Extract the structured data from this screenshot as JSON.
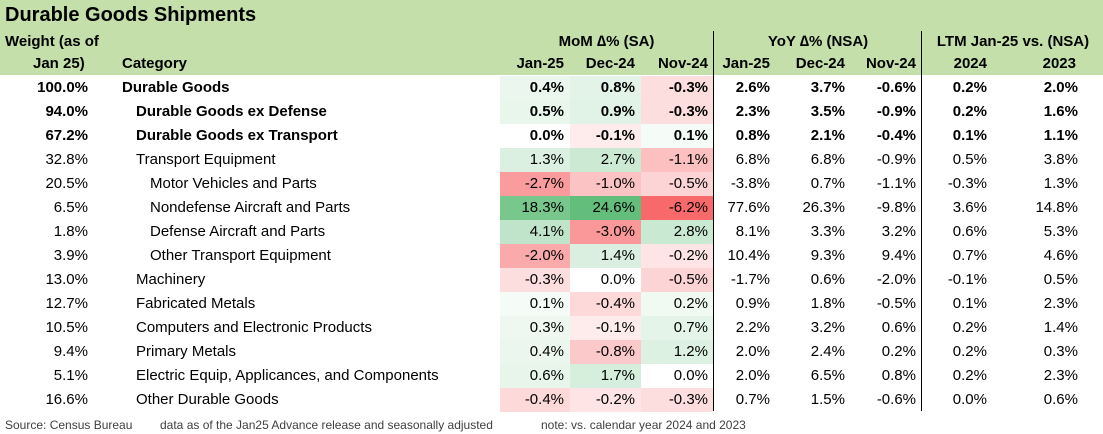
{
  "title": "Durable Goods Shipments",
  "headers": {
    "weight_line1": "Weight (as of",
    "weight_line2": "Jan 25)",
    "category": "Category",
    "mom_group": "MoM ∆% (SA)",
    "yoy_group": "YoY ∆% (NSA)",
    "ltm_group": "LTM Jan-25 vs. (NSA)",
    "mom_cols": [
      "Jan-25",
      "Dec-24",
      "Nov-24"
    ],
    "yoy_cols": [
      "Jan-25",
      "Dec-24",
      "Nov-24"
    ],
    "ltm_cols": [
      "2024",
      "2023"
    ]
  },
  "rows": [
    {
      "weight": "100.0%",
      "category": "Durable Goods",
      "level": 0,
      "bold": true,
      "mom": [
        "0.4%",
        "0.8%",
        "-0.3%"
      ],
      "yoy": [
        "2.6%",
        "3.7%",
        "-0.6%"
      ],
      "ltm": [
        "0.2%",
        "2.0%"
      ]
    },
    {
      "weight": "94.0%",
      "category": "Durable Goods ex Defense",
      "level": 1,
      "bold": true,
      "mom": [
        "0.5%",
        "0.9%",
        "-0.3%"
      ],
      "yoy": [
        "2.3%",
        "3.5%",
        "-0.9%"
      ],
      "ltm": [
        "0.2%",
        "1.6%"
      ]
    },
    {
      "weight": "67.2%",
      "category": "Durable Goods ex Transport",
      "level": 1,
      "bold": true,
      "mom": [
        "0.0%",
        "-0.1%",
        "0.1%"
      ],
      "yoy": [
        "0.8%",
        "2.1%",
        "-0.4%"
      ],
      "ltm": [
        "0.1%",
        "1.1%"
      ]
    },
    {
      "weight": "32.8%",
      "category": "Transport Equipment",
      "level": 1,
      "bold": false,
      "mom": [
        "1.3%",
        "2.7%",
        "-1.1%"
      ],
      "yoy": [
        "6.8%",
        "6.8%",
        "-0.9%"
      ],
      "ltm": [
        "0.5%",
        "3.8%"
      ]
    },
    {
      "weight": "20.5%",
      "category": "Motor Vehicles and Parts",
      "level": 2,
      "bold": false,
      "mom": [
        "-2.7%",
        "-1.0%",
        "-0.5%"
      ],
      "yoy": [
        "-3.8%",
        "0.7%",
        "-1.1%"
      ],
      "ltm": [
        "-0.3%",
        "1.3%"
      ]
    },
    {
      "weight": "6.5%",
      "category": "Nondefense Aircraft and Parts",
      "level": 2,
      "bold": false,
      "mom": [
        "18.3%",
        "24.6%",
        "-6.2%"
      ],
      "yoy": [
        "77.6%",
        "26.3%",
        "-9.8%"
      ],
      "ltm": [
        "3.6%",
        "14.8%"
      ]
    },
    {
      "weight": "1.8%",
      "category": "Defense Aircraft and Parts",
      "level": 2,
      "bold": false,
      "mom": [
        "4.1%",
        "-3.0%",
        "2.8%"
      ],
      "yoy": [
        "8.1%",
        "3.3%",
        "3.2%"
      ],
      "ltm": [
        "0.6%",
        "5.3%"
      ]
    },
    {
      "weight": "3.9%",
      "category": "Other Transport Equipment",
      "level": 2,
      "bold": false,
      "mom": [
        "-2.0%",
        "1.4%",
        "-0.2%"
      ],
      "yoy": [
        "10.4%",
        "9.3%",
        "9.4%"
      ],
      "ltm": [
        "0.7%",
        "4.6%"
      ]
    },
    {
      "weight": "13.0%",
      "category": "Machinery",
      "level": 1,
      "bold": false,
      "mom": [
        "-0.3%",
        "0.0%",
        "-0.5%"
      ],
      "yoy": [
        "-1.7%",
        "0.6%",
        "-2.0%"
      ],
      "ltm": [
        "-0.1%",
        "0.5%"
      ]
    },
    {
      "weight": "12.7%",
      "category": "Fabricated Metals",
      "level": 1,
      "bold": false,
      "mom": [
        "0.1%",
        "-0.4%",
        "0.2%"
      ],
      "yoy": [
        "0.9%",
        "1.8%",
        "-0.5%"
      ],
      "ltm": [
        "0.1%",
        "2.3%"
      ]
    },
    {
      "weight": "10.5%",
      "category": "Computers and Electronic Products",
      "level": 1,
      "bold": false,
      "mom": [
        "0.3%",
        "-0.1%",
        "0.7%"
      ],
      "yoy": [
        "2.2%",
        "3.2%",
        "0.6%"
      ],
      "ltm": [
        "0.2%",
        "1.4%"
      ]
    },
    {
      "weight": "9.4%",
      "category": "Primary Metals",
      "level": 1,
      "bold": false,
      "mom": [
        "0.4%",
        "-0.8%",
        "1.2%"
      ],
      "yoy": [
        "2.0%",
        "2.4%",
        "0.2%"
      ],
      "ltm": [
        "0.2%",
        "0.3%"
      ]
    },
    {
      "weight": "5.1%",
      "category": "Electric Equip, Applicances, and Components",
      "level": 1,
      "bold": false,
      "mom": [
        "0.6%",
        "1.7%",
        "0.0%"
      ],
      "yoy": [
        "2.0%",
        "6.5%",
        "0.8%"
      ],
      "ltm": [
        "0.2%",
        "2.3%"
      ]
    },
    {
      "weight": "16.6%",
      "category": "Other Durable Goods",
      "level": 1,
      "bold": false,
      "mom": [
        "-0.4%",
        "-0.2%",
        "-0.3%"
      ],
      "yoy": [
        "0.7%",
        "1.5%",
        "-0.6%"
      ],
      "ltm": [
        "0.0%",
        "0.6%"
      ]
    }
  ],
  "footer": {
    "source": "Source: Census Bureau",
    "data_note": "data as of the Jan25 Advance release and seasonally adjusted",
    "note": "note: vs. calendar year 2024 and 2023"
  },
  "colors": {
    "header_bg": "#c4dfa9",
    "heat_positive": "#63be7b",
    "heat_negative": "#f8696b",
    "divider": "#000000"
  }
}
